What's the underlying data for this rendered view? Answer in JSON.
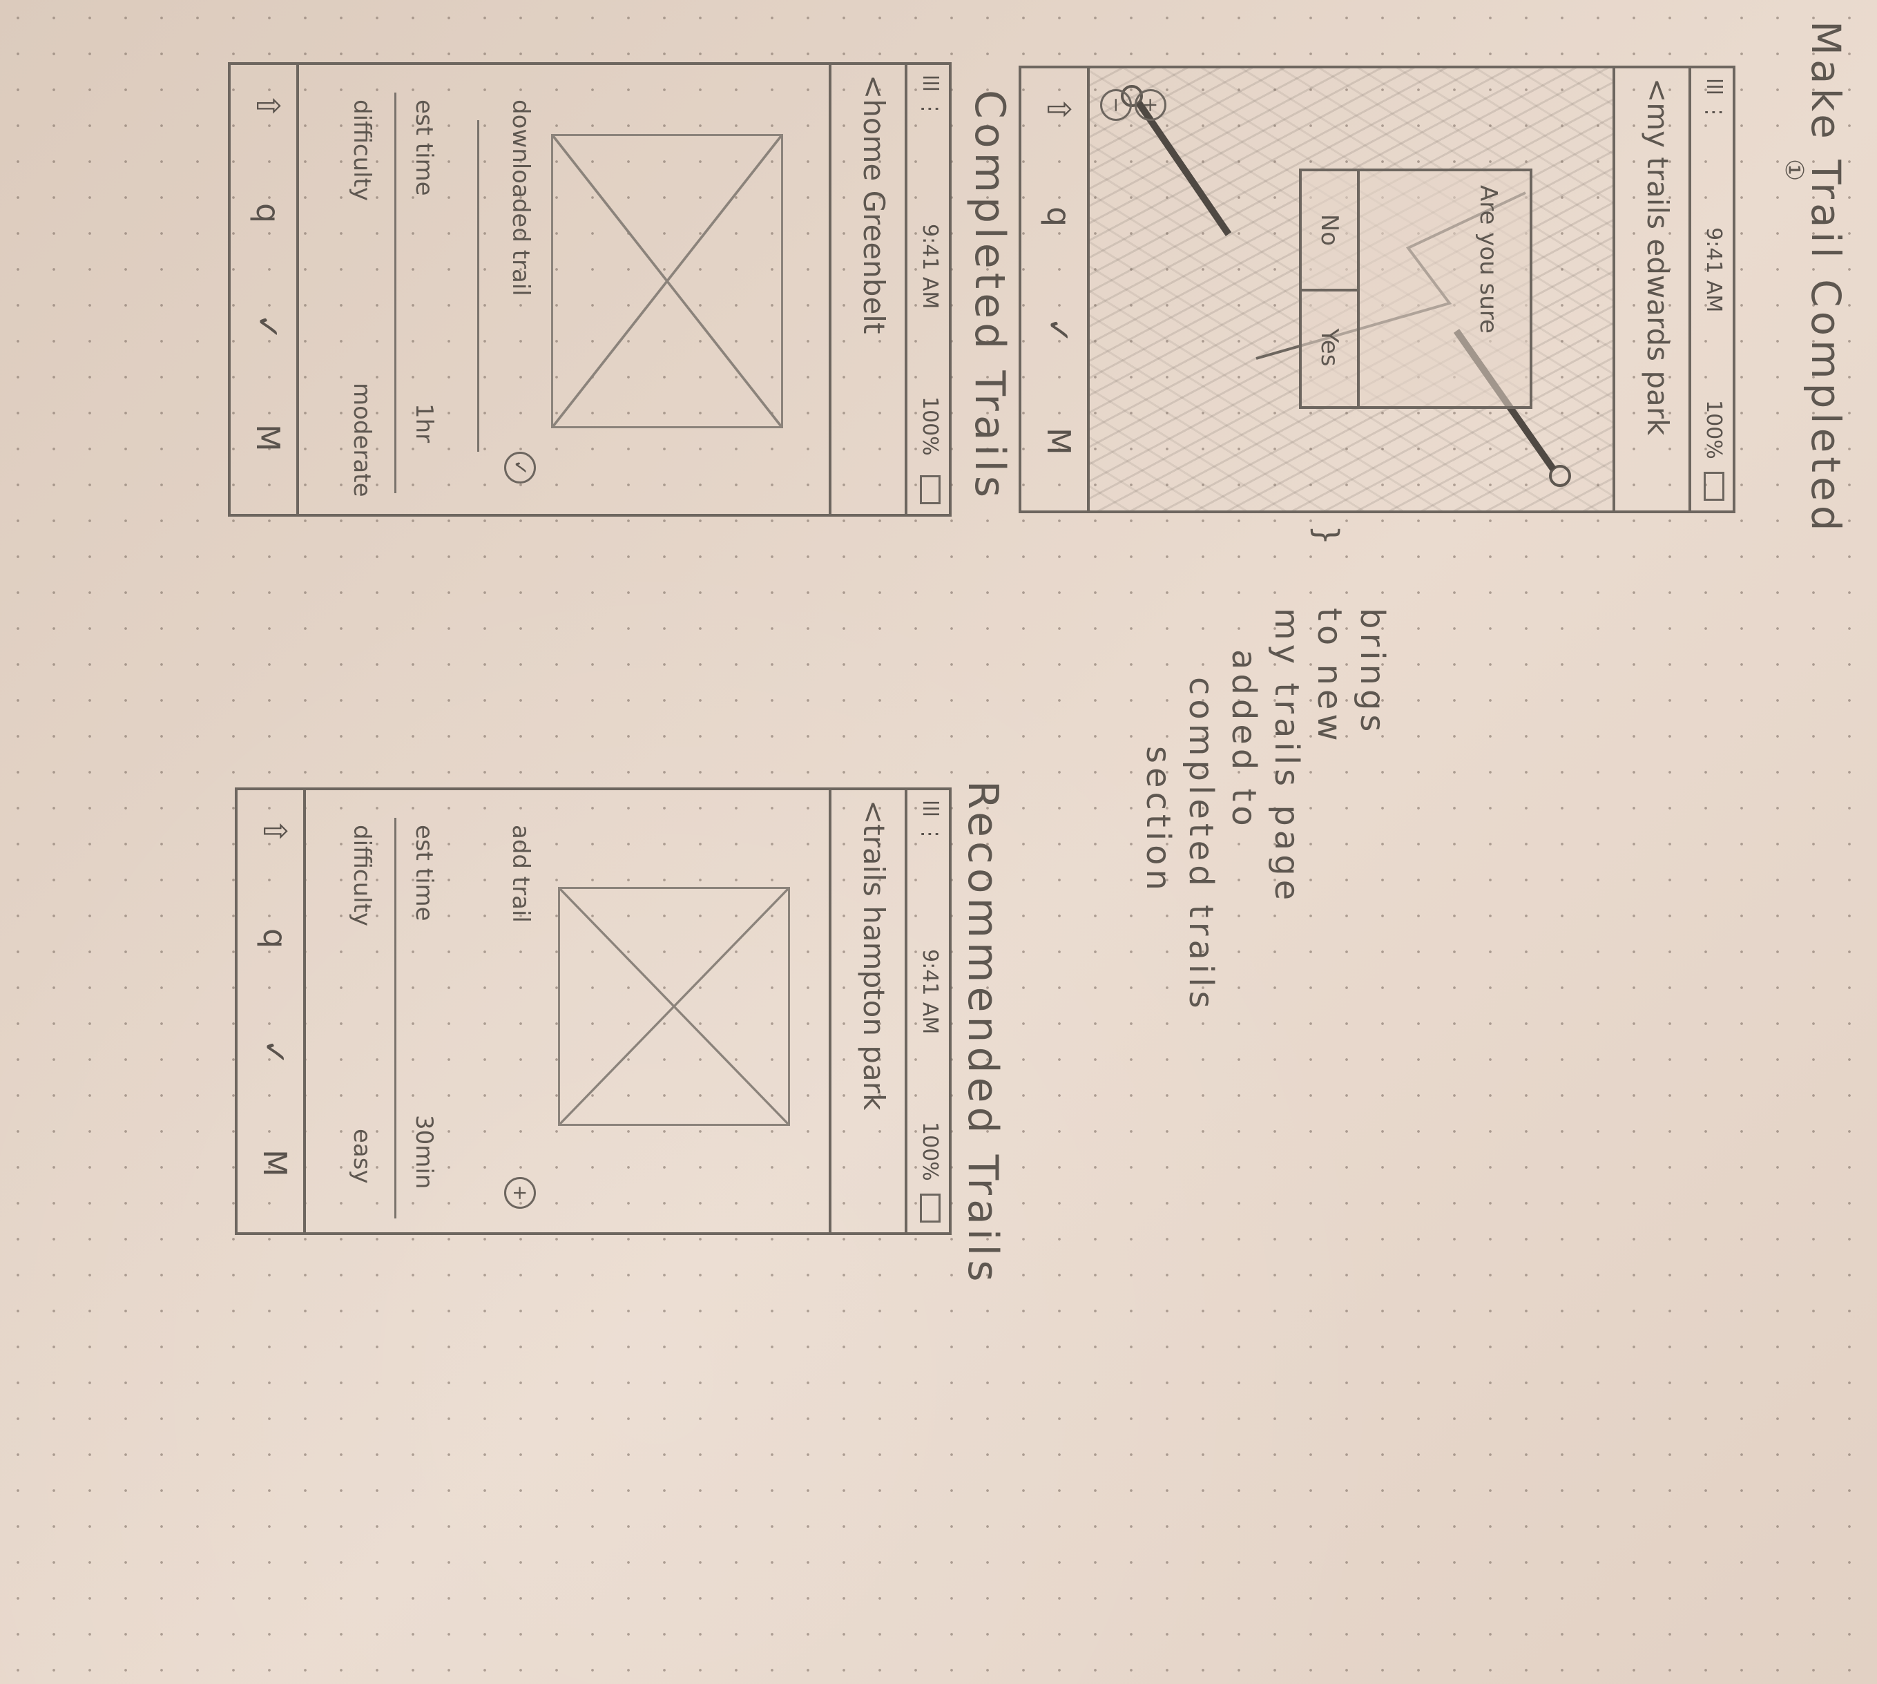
{
  "page": {
    "title": "Make Trail Completed",
    "marker": "①",
    "annotation_lines": [
      "brings",
      "to new",
      "my trails page",
      "added to",
      "completed trails",
      "section"
    ]
  },
  "sections": {
    "completed_label": "Completed Trails",
    "recommended_label": "Recommended Trails"
  },
  "status_bar": {
    "signal": "lll ⋮",
    "time_a": "9:41 AM",
    "time_b": "9:41 AM",
    "time_c": "9:41 AM",
    "battery": "100%"
  },
  "dialog_screen": {
    "back_title": "<my trails  edwards park",
    "dialog_text": "Are you sure",
    "no_label": "No",
    "yes_label": "Yes",
    "zoom_in": "+",
    "zoom_out": "−"
  },
  "completed_screen": {
    "back_title": "<home  Greenbelt",
    "action_label": "downloaded trail",
    "est_time_label": "est time",
    "est_time_value": "1hr",
    "difficulty_label": "difficulty",
    "difficulty_value": "moderate"
  },
  "recommended_screen": {
    "back_title": "<trails  hampton park",
    "action_label": "add trail",
    "est_time_label": "est time",
    "est_time_value": "30min",
    "difficulty_label": "difficulty",
    "difficulty_value": "easy"
  },
  "tab_bar": {
    "tab_home": "⇧",
    "tab_search": "q",
    "tab_check": "✓",
    "tab_map": "M"
  },
  "colors": {
    "paper": "#e6d6c9",
    "pencil": "#6d665f"
  }
}
